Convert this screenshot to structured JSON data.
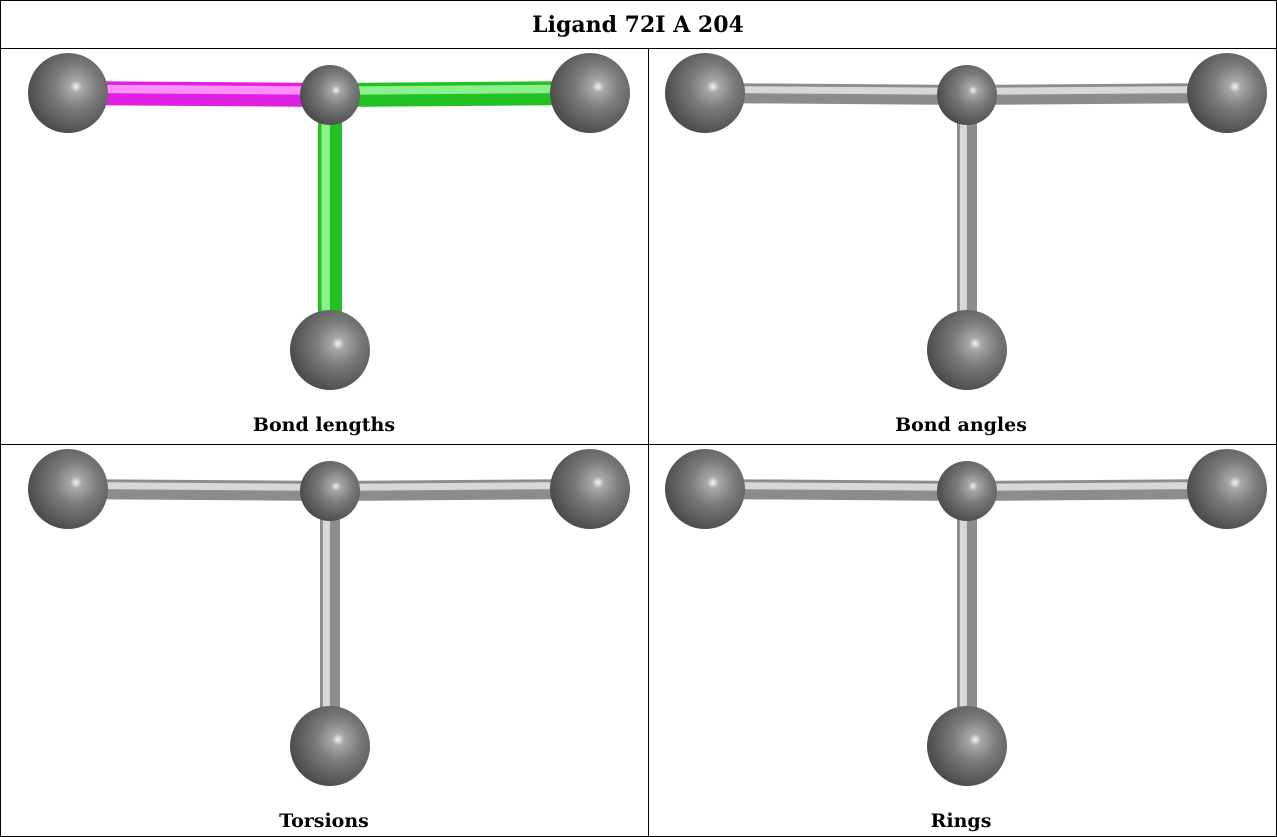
{
  "title": "Ligand 72I A 204",
  "panels": [
    {
      "caption": "Bond lengths"
    },
    {
      "caption": "Bond angles"
    },
    {
      "caption": "Torsions"
    },
    {
      "caption": "Rings"
    }
  ]
}
